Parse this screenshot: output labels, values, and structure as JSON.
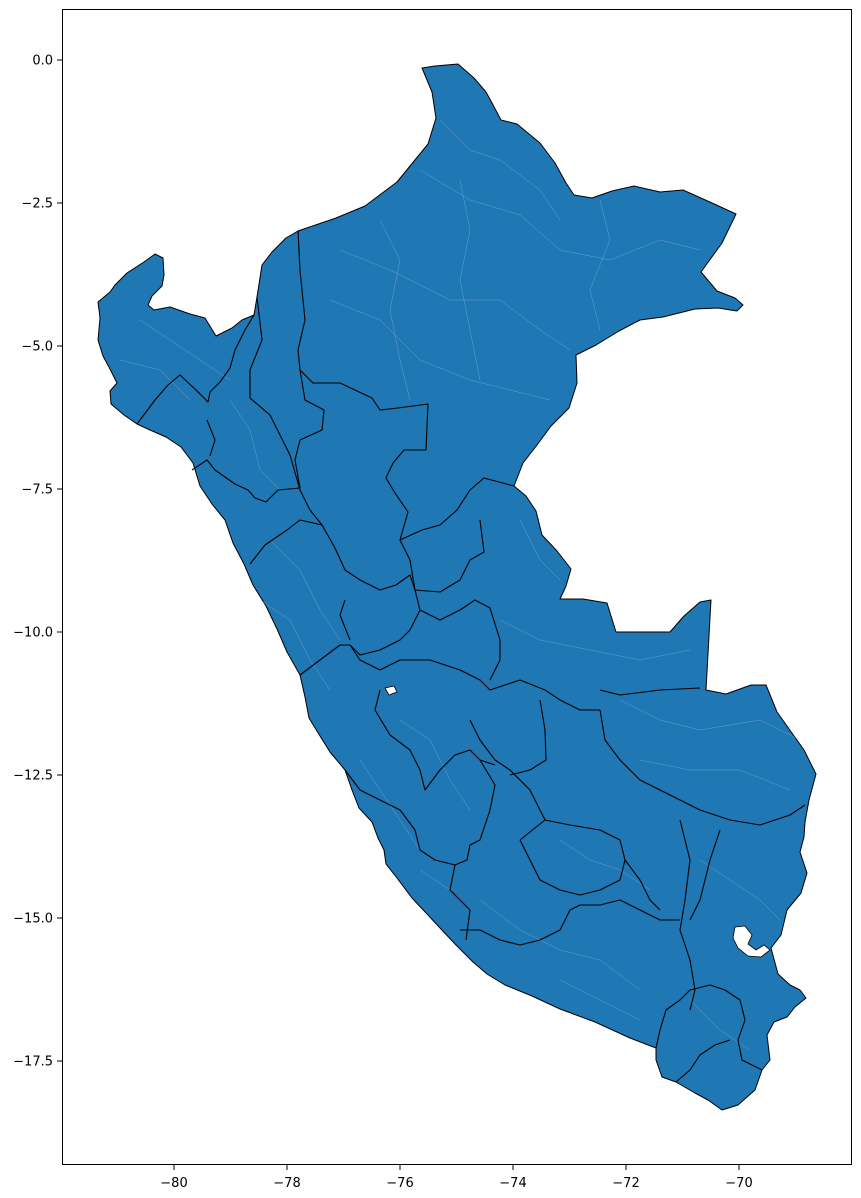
{
  "map": {
    "fill_color": "#1f77b4",
    "border_color": "#000000",
    "district_line_color": "#8fb6da",
    "x_ticks": [
      {
        "value": -80,
        "label": "−80"
      },
      {
        "value": -78,
        "label": "−78"
      },
      {
        "value": -76,
        "label": "−76"
      },
      {
        "value": -74,
        "label": "−74"
      },
      {
        "value": -72,
        "label": "−72"
      },
      {
        "value": -70,
        "label": "−70"
      }
    ],
    "y_ticks": [
      {
        "value": 0.0,
        "label": "0.0"
      },
      {
        "value": -2.5,
        "label": "−2.5"
      },
      {
        "value": -5.0,
        "label": "−5.0"
      },
      {
        "value": -7.5,
        "label": "−7.5"
      },
      {
        "value": -10.0,
        "label": "−10.0"
      },
      {
        "value": -12.5,
        "label": "−12.5"
      },
      {
        "value": -15.0,
        "label": "−15.0"
      },
      {
        "value": -17.5,
        "label": "−17.5"
      }
    ]
  }
}
